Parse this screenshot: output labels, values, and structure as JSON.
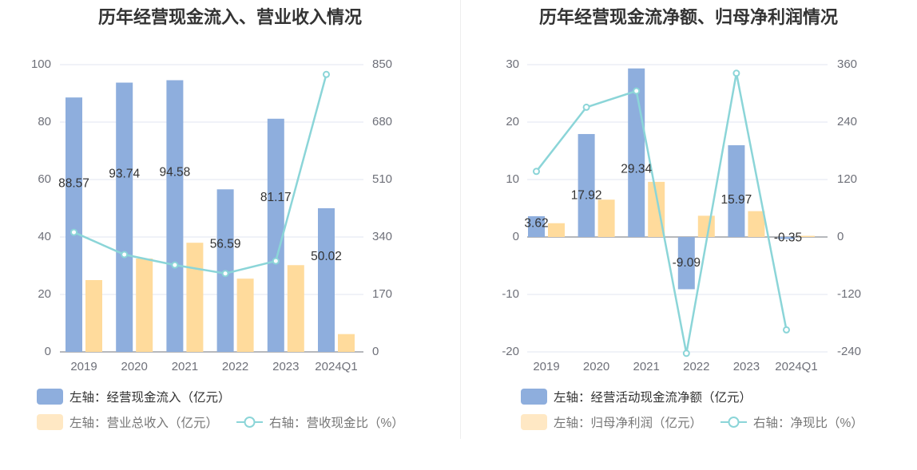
{
  "chart_data": [
    {
      "type": "bar",
      "title": "历年经营现金流入、营业收入情况",
      "categories": [
        "2019",
        "2020",
        "2021",
        "2022",
        "2023",
        "2024Q1"
      ],
      "left_axis": {
        "ticks": [
          "100",
          "80",
          "60",
          "40",
          "20",
          "0"
        ],
        "ylim": [
          0,
          100
        ]
      },
      "right_axis": {
        "ticks": [
          "850",
          "680",
          "510",
          "340",
          "170",
          "0"
        ],
        "ylim": [
          0,
          850
        ]
      },
      "series": [
        {
          "name": "左轴：经营现金流入（亿元）",
          "type": "bar",
          "axis": "left",
          "color": "#8eaedd",
          "values": [
            88.57,
            93.74,
            94.58,
            56.59,
            81.17,
            50.02
          ],
          "labels": [
            "88.57",
            "93.74",
            "94.58",
            "56.59",
            "81.17",
            "50.02"
          ]
        },
        {
          "name": "左轴：营业总收入（亿元）",
          "type": "bar",
          "axis": "left",
          "color": "#ffdb9c",
          "values": [
            25.0,
            32.5,
            38.0,
            25.5,
            30.2,
            6.2
          ]
        },
        {
          "name": "右轴：营收现金比（%）",
          "type": "line",
          "axis": "right",
          "color": "#8bd5d8",
          "values": [
            354,
            288,
            257,
            232,
            269,
            821
          ]
        }
      ],
      "grid": true,
      "legend_position": "bottom-left"
    },
    {
      "type": "bar",
      "title": "历年经营现金流净额、归母净利润情况",
      "categories": [
        "2019",
        "2020",
        "2021",
        "2022",
        "2023",
        "2024Q1"
      ],
      "left_axis": {
        "ticks": [
          "30",
          "20",
          "10",
          "0",
          "-10",
          "-20"
        ],
        "ylim": [
          -20,
          30
        ]
      },
      "right_axis": {
        "ticks": [
          "360",
          "240",
          "120",
          "0",
          "-120",
          "-240"
        ],
        "ylim": [
          -240,
          360
        ]
      },
      "series": [
        {
          "name": "左轴：经营活动现金流净额（亿元）",
          "type": "bar",
          "axis": "left",
          "color": "#8eaedd",
          "values": [
            3.62,
            17.92,
            29.34,
            -9.09,
            15.97,
            -0.35
          ],
          "labels": [
            "3.62",
            "17.92",
            "29.34",
            "-9.09",
            "15.97",
            "-0.35"
          ]
        },
        {
          "name": "左轴：归母净利润（亿元）",
          "type": "bar",
          "axis": "left",
          "color": "#ffdb9c",
          "values": [
            2.4,
            6.5,
            9.6,
            3.7,
            4.5,
            0.2
          ]
        },
        {
          "name": "右轴：净现比（%）",
          "type": "line",
          "axis": "right",
          "color": "#8bd5d8",
          "values": [
            137,
            271,
            305,
            -243,
            342,
            -194
          ]
        }
      ],
      "grid": true,
      "legend_position": "bottom-left"
    }
  ]
}
